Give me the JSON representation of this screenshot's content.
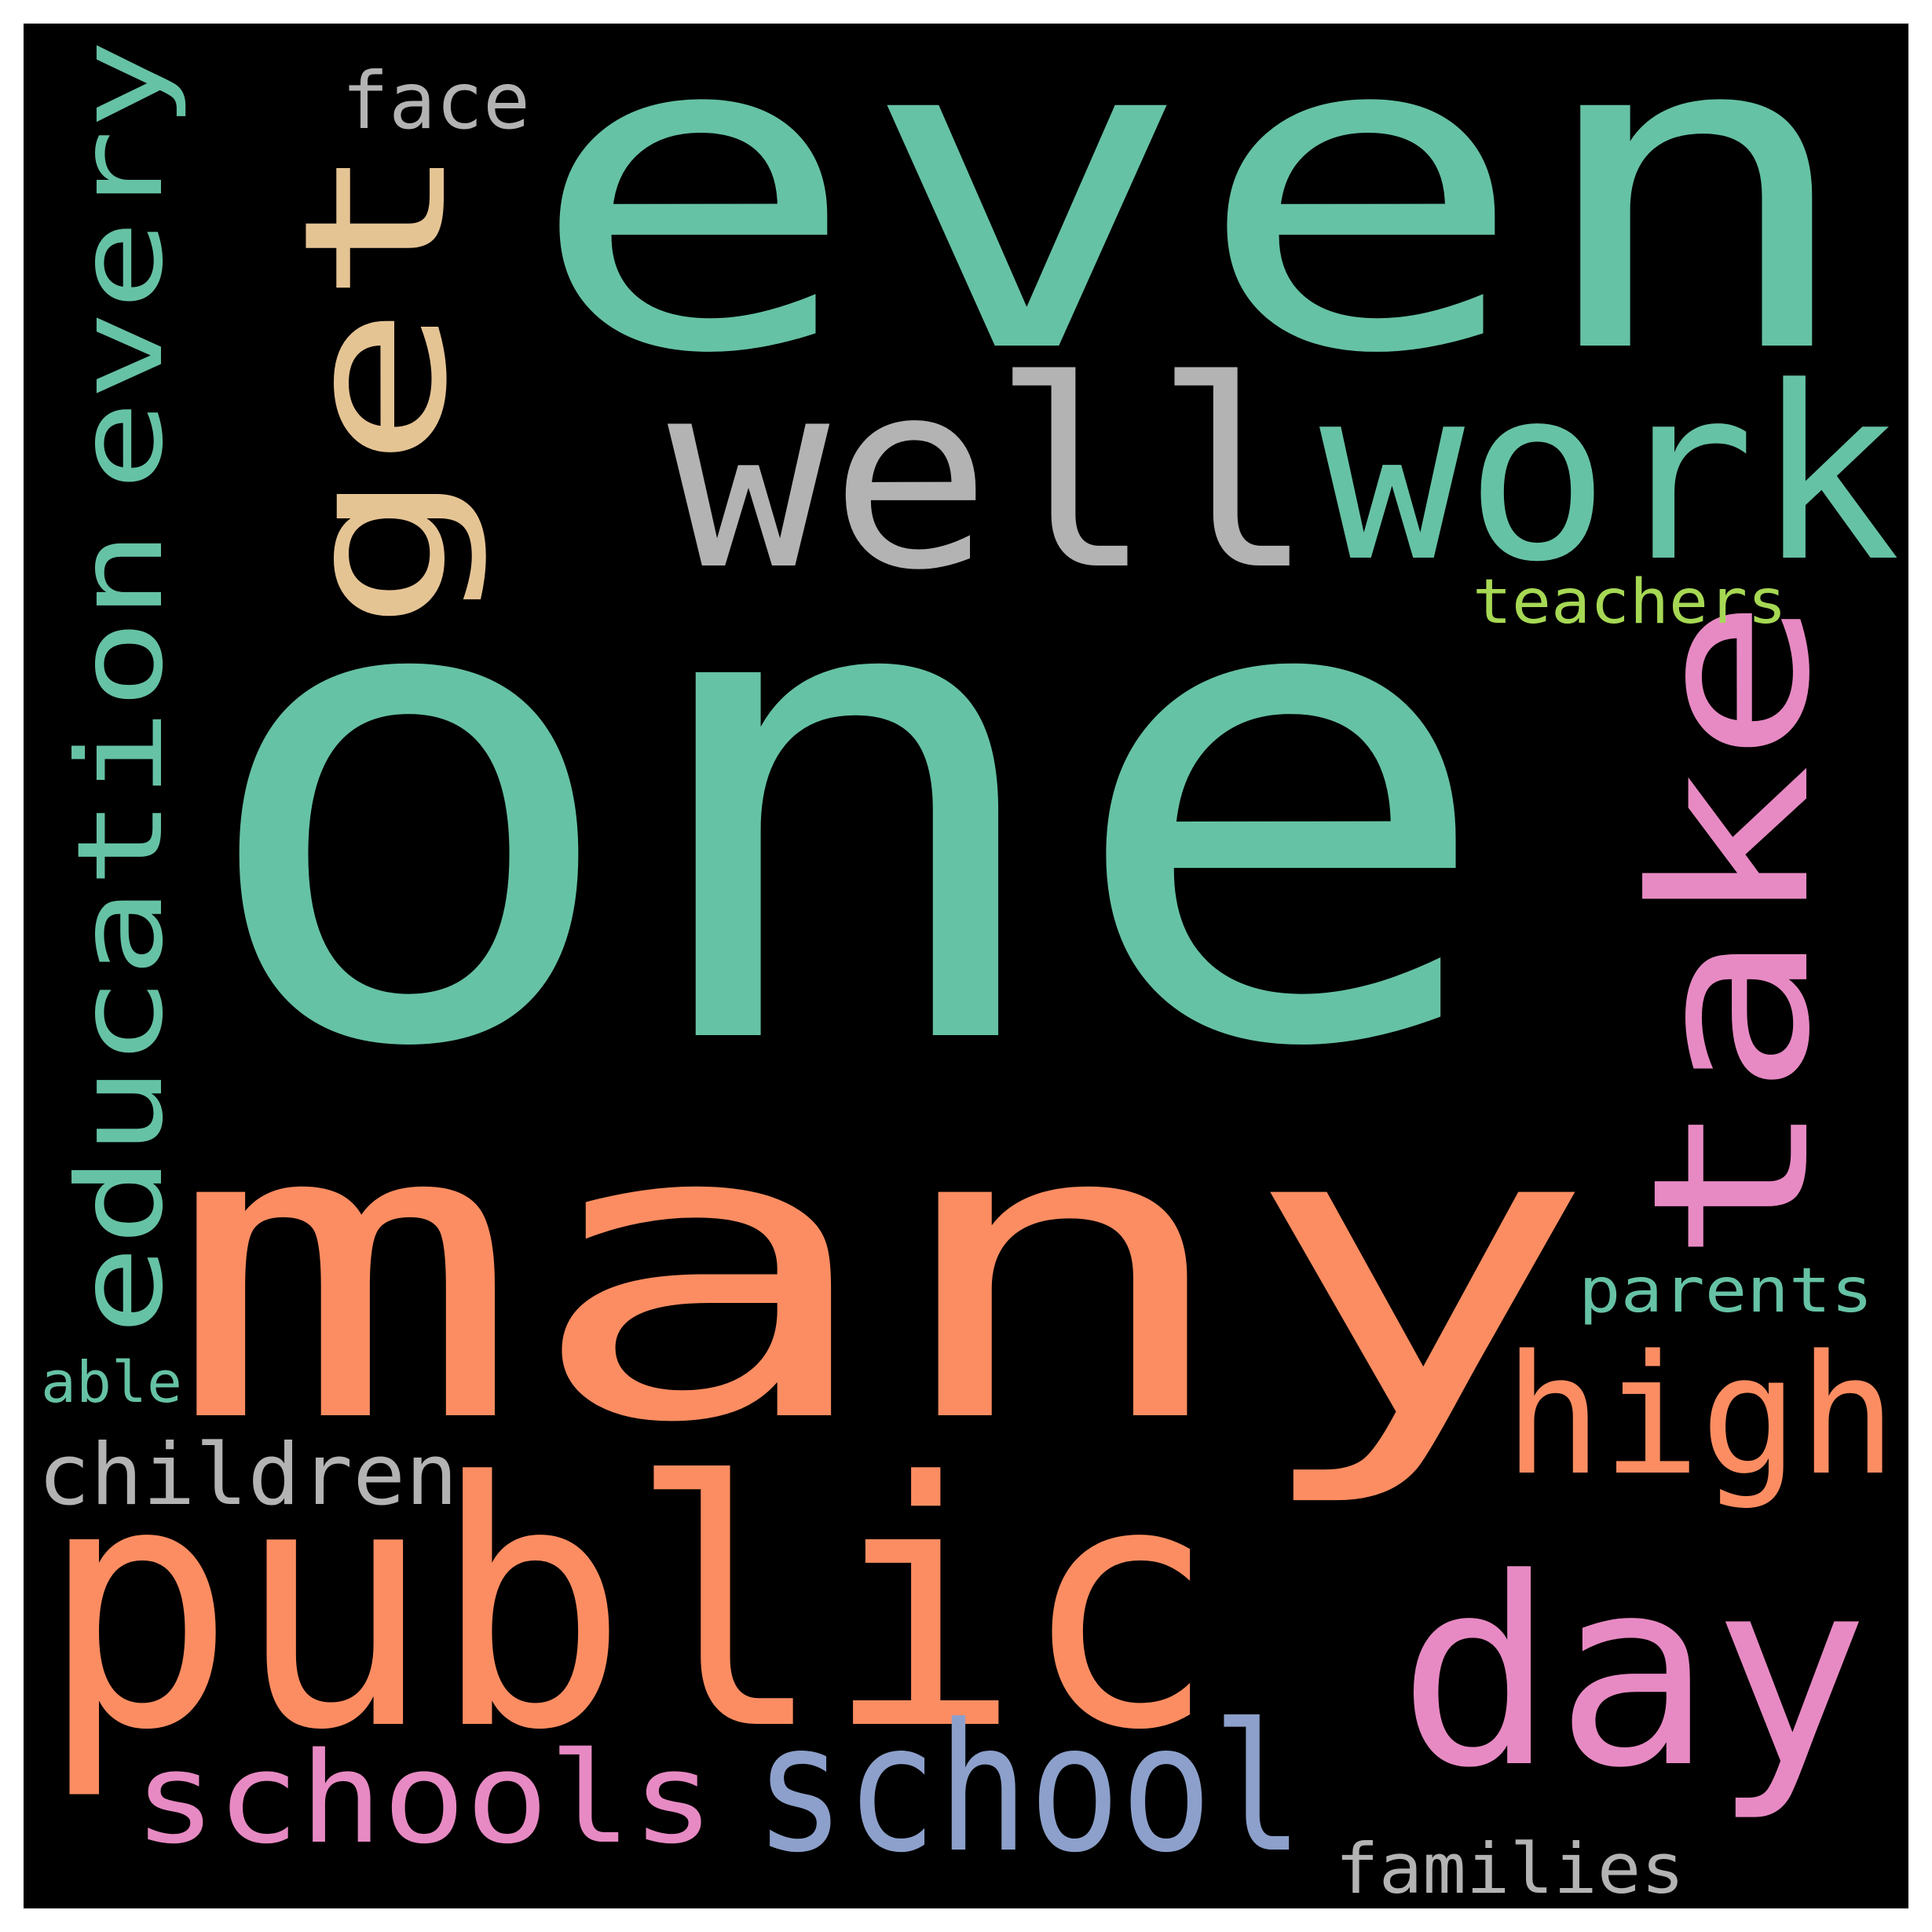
{
  "background_color": "#000000",
  "palette": {
    "green": "#66c2a5",
    "pink": "#e78ac3",
    "orange": "#fc8d62",
    "gray": "#b3b3b3",
    "tan": "#e5c494",
    "blue": "#8da0cb",
    "lime": "#a6d854"
  },
  "words": [
    {
      "id": "one",
      "text": "one",
      "color": "green"
    },
    {
      "id": "many",
      "text": "many",
      "color": "orange"
    },
    {
      "id": "even",
      "text": "even",
      "color": "green"
    },
    {
      "id": "public",
      "text": "public",
      "color": "orange"
    },
    {
      "id": "well",
      "text": "well",
      "color": "gray"
    },
    {
      "id": "work",
      "text": "work",
      "color": "green"
    },
    {
      "id": "take",
      "text": "take",
      "color": "pink"
    },
    {
      "id": "get",
      "text": "get",
      "color": "tan"
    },
    {
      "id": "day",
      "text": "day",
      "color": "pink"
    },
    {
      "id": "school",
      "text": "school",
      "color": "blue"
    },
    {
      "id": "schools",
      "text": "schools",
      "color": "pink"
    },
    {
      "id": "education",
      "text": "education",
      "color": "green"
    },
    {
      "id": "every",
      "text": "every",
      "color": "green"
    },
    {
      "id": "high",
      "text": "high",
      "color": "orange"
    },
    {
      "id": "children",
      "text": "children",
      "color": "gray"
    },
    {
      "id": "face",
      "text": "face",
      "color": "gray"
    },
    {
      "id": "teachers",
      "text": "teachers",
      "color": "lime"
    },
    {
      "id": "parents",
      "text": "parents",
      "color": "green"
    },
    {
      "id": "able",
      "text": "able",
      "color": "green"
    },
    {
      "id": "families",
      "text": "families",
      "color": "gray"
    }
  ]
}
